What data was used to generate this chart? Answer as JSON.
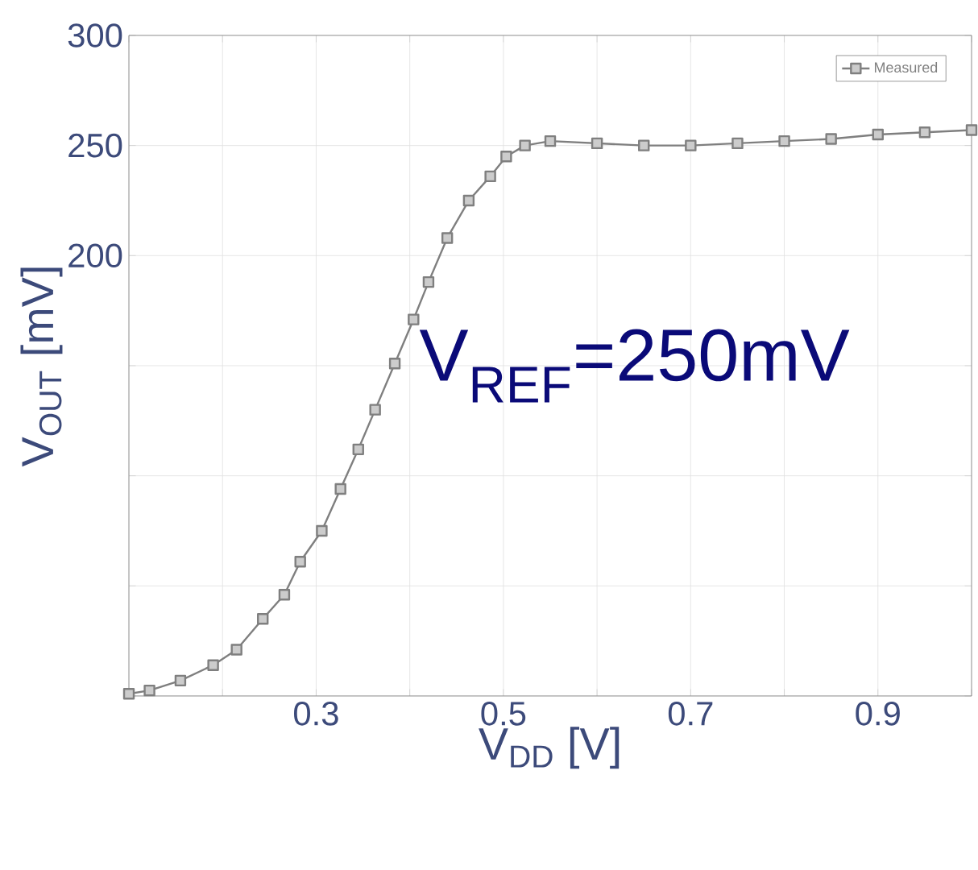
{
  "chart_data": {
    "type": "line",
    "xlabel": "V$_{DD}$ [V]",
    "ylabel": "V$_{OUT}$ [mV]",
    "annotations": [
      "V$_{REF}$=250mV"
    ],
    "x": [
      0.1,
      0.122,
      0.155,
      0.19,
      0.215,
      0.243,
      0.266,
      0.283,
      0.306,
      0.326,
      0.345,
      0.363,
      0.384,
      0.404,
      0.42,
      0.44,
      0.463,
      0.486,
      0.503,
      0.523,
      0.55,
      0.6,
      0.65,
      0.7,
      0.75,
      0.8,
      0.85,
      0.9,
      0.95,
      1.0
    ],
    "series": [
      {
        "name": "Measured",
        "color": "#7f7f7f",
        "values": [
          1,
          2.5,
          7,
          14,
          21,
          35,
          46,
          61,
          75,
          94,
          112,
          130,
          151,
          171,
          188,
          208,
          225,
          236,
          245,
          250,
          252,
          251,
          250,
          250,
          251,
          252,
          253,
          255,
          256,
          257
        ]
      }
    ],
    "xlim": [
      0.1,
      1.0
    ],
    "ylim": [
      0,
      300
    ],
    "xticks": [
      {
        "value": 0.1,
        "label": null
      },
      {
        "value": 0.2,
        "label": null
      },
      0.3,
      {
        "value": 0.4,
        "label": null
      },
      0.5,
      {
        "value": 0.6,
        "label": null
      },
      0.7,
      {
        "value": 0.8,
        "label": null
      },
      0.9,
      {
        "value": 1.0,
        "label": null
      }
    ],
    "yticks": [
      {
        "value": 0,
        "label": null
      },
      {
        "value": 50,
        "label": null
      },
      {
        "value": 100,
        "label": null
      },
      {
        "value": 150,
        "label": null
      },
      200,
      250,
      300
    ],
    "grid": true,
    "legend": "top right",
    "marker": "square",
    "line_style": "solid"
  }
}
